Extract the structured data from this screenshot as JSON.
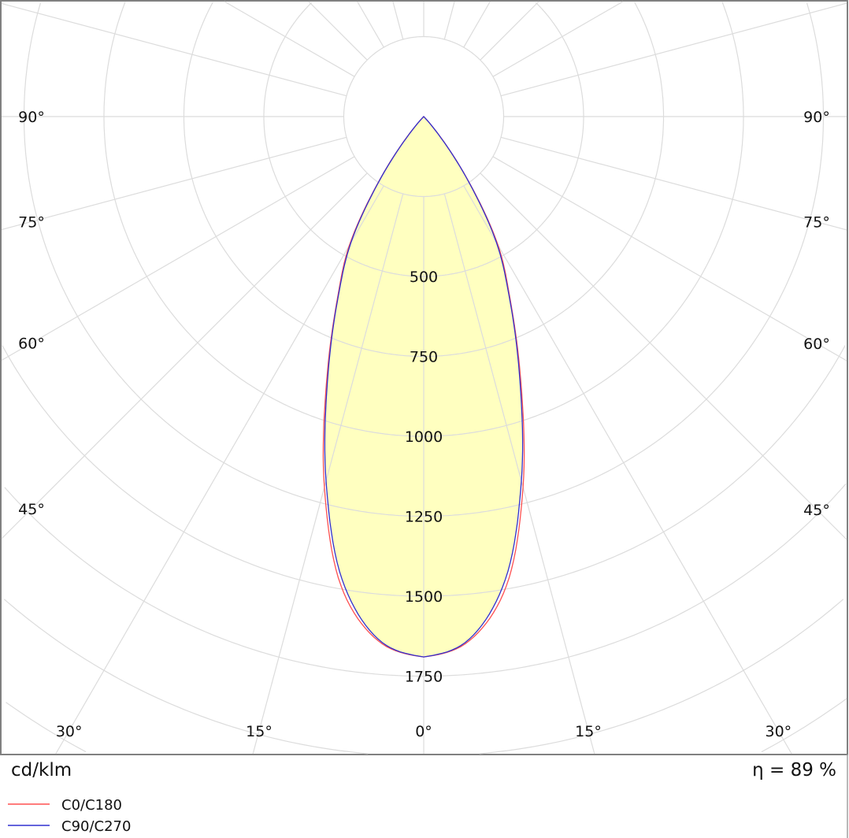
{
  "chart_data": {
    "type": "polar",
    "unit_label": "cd/klm",
    "efficiency_label": "η = 89 %",
    "angle_labels": [
      "90°",
      "75°",
      "60°",
      "45°",
      "30°",
      "15°",
      "0°"
    ],
    "angle_label_values": [
      90,
      75,
      60,
      45,
      30,
      15,
      0
    ],
    "radial_ticks": [
      500,
      750,
      1000,
      1250,
      1500,
      1750
    ],
    "radial_ticks_text": [
      "500",
      "750",
      "1000",
      "1250",
      "1500",
      "1750"
    ],
    "radial_grid_step": 250,
    "angular_grid_step": 15,
    "grid": true,
    "legend_placement": "bottom-left",
    "angles": [
      0,
      5,
      10,
      15,
      20,
      25,
      30,
      35,
      40,
      45,
      50,
      55,
      60,
      65,
      70,
      75,
      80,
      85,
      90
    ],
    "series": [
      {
        "name": "C0/C180",
        "color": "#ff5050",
        "values": [
          1690,
          1645,
          1490,
          1200,
          890,
          645,
          465,
          235,
          65,
          0,
          0,
          0,
          0,
          0,
          0,
          0,
          0,
          0,
          0
        ]
      },
      {
        "name": "C90/C270",
        "color": "#3030d0",
        "values": [
          1690,
          1640,
          1470,
          1180,
          880,
          640,
          455,
          230,
          60,
          0,
          0,
          0,
          0,
          0,
          0,
          0,
          0,
          0,
          0
        ]
      }
    ],
    "fill_color": "#ffffc0"
  }
}
